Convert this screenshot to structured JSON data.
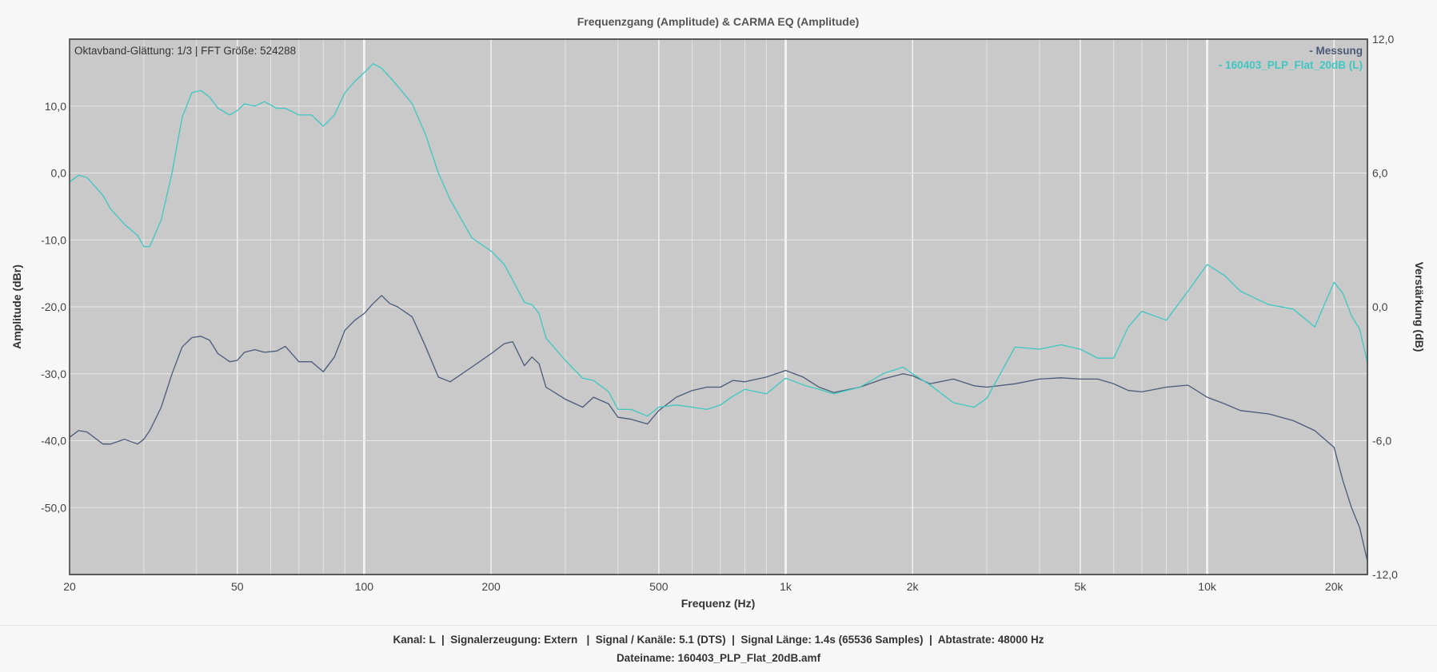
{
  "chart_data": {
    "type": "line",
    "title": "Frequenzgang (Amplitude) & CARMA EQ (Amplitude)",
    "xlabel": "Frequenz (Hz)",
    "ylabel": "Amplitude (dBr)",
    "y2label": "Verstärkung (dB)",
    "x_scale": "log",
    "xlim": [
      20,
      24000
    ],
    "ylim": [
      -60,
      20
    ],
    "y2lim": [
      -12,
      12
    ],
    "x_ticks": [
      20,
      50,
      100,
      200,
      500,
      1000,
      2000,
      5000,
      10000,
      20000
    ],
    "x_tick_labels": [
      "20",
      "50",
      "100",
      "200",
      "500",
      "1k",
      "2k",
      "5k",
      "10k",
      "20k"
    ],
    "y_ticks": [
      10,
      0,
      -10,
      -20,
      -30,
      -40,
      -50
    ],
    "y_tick_labels": [
      "10,0",
      "0,0",
      "-10,0",
      "-20,0",
      "-30,0",
      "-40,0",
      "-50,0"
    ],
    "y2_ticks": [
      12,
      6,
      0,
      -6,
      -12
    ],
    "y2_tick_labels": [
      "12,0",
      "6,0",
      "0,0",
      "-6,0",
      "-12,0"
    ],
    "annotation": "Oktavband-Glättung: 1/3 | FFT Größe: 524288",
    "legend_position": "top-right",
    "grid": true,
    "series": [
      {
        "name": "- Messung",
        "axis": "left",
        "color": "#4a5a78",
        "x": [
          20,
          21,
          22,
          24,
          25,
          27,
          29,
          30,
          31,
          33,
          35,
          37,
          39,
          41,
          43,
          45,
          48,
          50,
          52,
          55,
          58,
          62,
          65,
          70,
          75,
          80,
          85,
          90,
          95,
          100,
          105,
          110,
          115,
          120,
          130,
          140,
          150,
          160,
          180,
          200,
          215,
          225,
          240,
          250,
          260,
          270,
          300,
          330,
          350,
          380,
          400,
          430,
          470,
          500,
          550,
          600,
          650,
          700,
          750,
          800,
          900,
          1000,
          1100,
          1200,
          1300,
          1500,
          1700,
          1900,
          2000,
          2200,
          2500,
          2800,
          3000,
          3500,
          4000,
          4500,
          5000,
          5500,
          6000,
          6500,
          7000,
          8000,
          9000,
          10000,
          11000,
          12000,
          14000,
          16000,
          18000,
          20000,
          21000,
          22000,
          23000,
          24000
        ],
        "y": [
          -39.5,
          -38.5,
          -38.7,
          -40.5,
          -40.5,
          -39.8,
          -40.5,
          -39.8,
          -38.5,
          -35.0,
          -30.0,
          -26.0,
          -24.6,
          -24.4,
          -25.0,
          -27.0,
          -28.2,
          -28.0,
          -26.8,
          -26.4,
          -26.8,
          -26.6,
          -25.9,
          -28.2,
          -28.2,
          -29.7,
          -27.5,
          -23.5,
          -22.0,
          -21.0,
          -19.5,
          -18.3,
          -19.5,
          -20.0,
          -21.5,
          -26.0,
          -30.5,
          -31.2,
          -29.0,
          -27.0,
          -25.5,
          -25.2,
          -28.8,
          -27.5,
          -28.5,
          -32.0,
          -33.8,
          -35.0,
          -33.5,
          -34.5,
          -36.5,
          -36.8,
          -37.5,
          -35.5,
          -33.5,
          -32.5,
          -32.0,
          -32.0,
          -31.0,
          -31.2,
          -30.5,
          -29.5,
          -30.5,
          -32.0,
          -32.8,
          -32.0,
          -30.8,
          -30.0,
          -30.3,
          -31.5,
          -30.8,
          -31.8,
          -32.0,
          -31.5,
          -30.8,
          -30.6,
          -30.8,
          -30.8,
          -31.5,
          -32.5,
          -32.7,
          -32.0,
          -31.7,
          -33.5,
          -34.5,
          -35.5,
          -36.0,
          -37.0,
          -38.5,
          -41.0,
          -46.0,
          -50.0,
          -53.0,
          -58.0
        ]
      },
      {
        "name": "- 160403_PLP_Flat_20dB (L)",
        "axis": "right",
        "color": "#3ec7c2",
        "x": [
          20,
          21,
          22,
          24,
          25,
          27,
          29,
          30,
          31,
          33,
          35,
          37,
          39,
          41,
          43,
          45,
          48,
          50,
          52,
          55,
          58,
          62,
          65,
          70,
          75,
          80,
          85,
          90,
          95,
          100,
          105,
          110,
          115,
          120,
          130,
          140,
          150,
          160,
          180,
          200,
          215,
          225,
          240,
          250,
          260,
          270,
          300,
          330,
          350,
          380,
          400,
          430,
          470,
          500,
          550,
          600,
          650,
          700,
          750,
          800,
          900,
          1000,
          1100,
          1200,
          1300,
          1500,
          1700,
          1900,
          2000,
          2200,
          2500,
          2800,
          3000,
          3500,
          4000,
          4500,
          5000,
          5500,
          6000,
          6500,
          7000,
          8000,
          9000,
          10000,
          11000,
          12000,
          14000,
          16000,
          18000,
          20000,
          21000,
          22000,
          23000,
          24000
        ],
        "y": [
          5.6,
          5.9,
          5.8,
          5.0,
          4.4,
          3.7,
          3.2,
          2.7,
          2.7,
          3.9,
          6.0,
          8.5,
          9.6,
          9.7,
          9.4,
          8.9,
          8.6,
          8.8,
          9.1,
          9.0,
          9.2,
          8.9,
          8.9,
          8.6,
          8.6,
          8.1,
          8.6,
          9.6,
          10.1,
          10.5,
          10.9,
          10.7,
          10.3,
          9.9,
          9.1,
          7.7,
          6.0,
          4.8,
          3.1,
          2.5,
          1.9,
          1.2,
          0.2,
          0.1,
          -0.3,
          -1.4,
          -2.4,
          -3.2,
          -3.3,
          -3.8,
          -4.6,
          -4.6,
          -4.9,
          -4.5,
          -4.4,
          -4.5,
          -4.6,
          -4.4,
          -4.0,
          -3.7,
          -3.9,
          -3.2,
          -3.5,
          -3.7,
          -3.9,
          -3.6,
          -3.0,
          -2.7,
          -3.0,
          -3.5,
          -4.3,
          -4.5,
          -4.1,
          -1.8,
          -1.9,
          -1.7,
          -1.9,
          -2.3,
          -2.3,
          -0.9,
          -0.2,
          -0.6,
          0.7,
          1.9,
          1.4,
          0.7,
          0.1,
          -0.1,
          -0.9,
          1.1,
          0.6,
          -0.4,
          -1.0,
          -2.5
        ]
      }
    ]
  },
  "footer": {
    "line1": "Kanal: L  |  Signalerzeugung: Extern   |  Signal / Kanäle: 5.1 (DTS)  |  Signal Länge: 1.4s (65536 Samples)  |  Abtastrate: 48000 Hz",
    "line2": "Dateiname: 160403_PLP_Flat_20dB.amf"
  }
}
